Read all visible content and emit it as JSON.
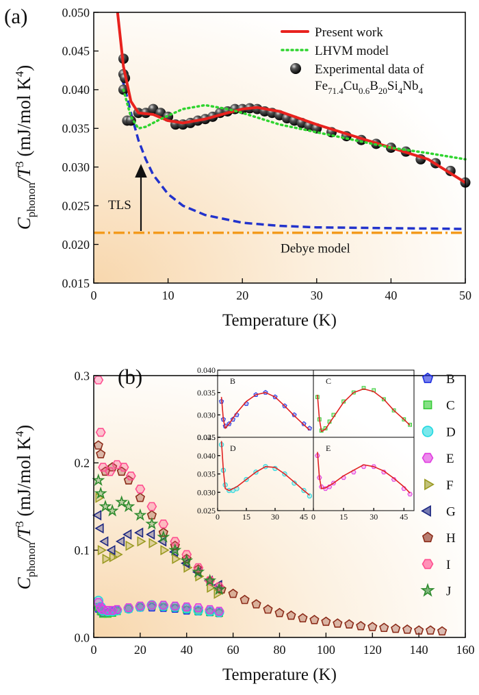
{
  "chart_data": [
    {
      "type": "line",
      "panel_label": "(a)",
      "xlabel": "Temperature (K)",
      "ylabel": [
        "C",
        "phonon",
        "/T",
        "3",
        " (mJ/mol K",
        "4",
        ")"
      ],
      "xlim": [
        0,
        50
      ],
      "xticks": [
        0,
        10,
        20,
        30,
        40,
        50
      ],
      "ylim": [
        0.015,
        0.05
      ],
      "yticks": [
        0.015,
        {
          "value": 0.02,
          "label": "0.020"
        },
        0.025,
        {
          "value": 0.03,
          "label": "0.030"
        },
        0.035,
        {
          "value": 0.04,
          "label": "0.040"
        },
        0.045,
        {
          "value": 0.05,
          "label": "0.050"
        }
      ],
      "series": [
        {
          "name": "Present work",
          "color": "#e8221e",
          "style": "solid",
          "x": [
            3.2,
            4,
            5,
            6,
            8,
            10,
            12,
            15,
            18,
            20,
            22,
            25,
            30,
            35,
            40,
            45,
            50
          ],
          "values": [
            0.05,
            0.043,
            0.0385,
            0.037,
            0.0368,
            0.036,
            0.0357,
            0.0362,
            0.037,
            0.0375,
            0.0377,
            0.0372,
            0.0355,
            0.034,
            0.0325,
            0.031,
            0.028
          ]
        },
        {
          "name": "LHVM model",
          "color": "#2fd42f",
          "style": "dotted",
          "x": [
            4,
            5,
            6,
            7,
            9,
            12,
            15,
            18,
            20,
            25,
            30,
            35,
            40,
            45,
            50
          ],
          "values": [
            0.04,
            0.0365,
            0.035,
            0.0352,
            0.0362,
            0.0375,
            0.038,
            0.0375,
            0.037,
            0.0355,
            0.0345,
            0.0335,
            0.0325,
            0.0318,
            0.031
          ]
        },
        {
          "name": "Experimental data of",
          "color": "#222222",
          "style": "ball",
          "x": [
            4,
            4,
            4,
            4.2,
            4.5,
            5,
            6,
            7,
            8,
            9,
            10,
            11,
            12,
            13,
            14,
            15,
            16,
            17,
            18,
            19,
            20,
            21,
            22,
            23,
            24,
            25,
            26,
            27,
            28,
            29,
            30,
            32,
            34,
            36,
            38,
            40,
            42,
            44,
            46,
            48,
            50
          ],
          "values": [
            0.044,
            0.042,
            0.04,
            0.0415,
            0.036,
            0.036,
            0.037,
            0.037,
            0.0375,
            0.037,
            0.0365,
            0.0355,
            0.0355,
            0.0357,
            0.036,
            0.0362,
            0.0365,
            0.037,
            0.0372,
            0.0375,
            0.0375,
            0.0376,
            0.0375,
            0.0372,
            0.037,
            0.0367,
            0.0363,
            0.036,
            0.0357,
            0.0353,
            0.035,
            0.0345,
            0.034,
            0.0335,
            0.033,
            0.0325,
            0.032,
            0.031,
            0.0305,
            0.0295,
            0.028
          ]
        }
      ],
      "legend_formula": [
        "Fe",
        "71.4",
        "Cu",
        "0.6",
        "B",
        "20",
        "Si",
        "4",
        "Nb",
        "4"
      ],
      "tls": {
        "label": "TLS",
        "color": "#2233cc",
        "x": [
          3.8,
          4.5,
          5,
          6,
          7,
          8,
          10,
          12,
          15,
          20,
          25,
          30,
          40,
          50
        ],
        "values": [
          0.0415,
          0.039,
          0.037,
          0.0335,
          0.031,
          0.029,
          0.0265,
          0.025,
          0.0238,
          0.0228,
          0.0224,
          0.0222,
          0.0221,
          0.022
        ]
      },
      "debye": {
        "label": "Debye model",
        "color": "#f39a1c",
        "values": [
          0.0215
        ]
      }
    },
    {
      "type": "scatter",
      "panel_label": "(b)",
      "xlabel": "Temperature (K)",
      "ylabel": [
        "C",
        "phonon",
        "/T",
        "3",
        " (mJ/mol K",
        "4",
        ")"
      ],
      "xlim": [
        0,
        160
      ],
      "xticks": [
        0,
        20,
        40,
        60,
        80,
        100,
        120,
        140,
        160
      ],
      "ylim": [
        0,
        0.3
      ],
      "yticks": [
        {
          "value": 0,
          "label": "0.0"
        },
        0.1,
        0.2,
        0.3
      ],
      "series": [
        {
          "name": "B",
          "color": "#1f2fe0",
          "marker": "pentagon",
          "x": [
            2,
            3,
            4,
            6,
            8,
            10,
            15,
            20,
            25,
            30,
            35,
            40,
            45,
            50,
            54
          ],
          "values": [
            0.033,
            0.03,
            0.028,
            0.028,
            0.029,
            0.031,
            0.033,
            0.0345,
            0.0345,
            0.034,
            0.033,
            0.031,
            0.03,
            0.029,
            0.028
          ]
        },
        {
          "name": "C",
          "color": "#35cc35",
          "marker": "square",
          "x": [
            2,
            3,
            4,
            6,
            8,
            10,
            15,
            20,
            25,
            30,
            35,
            40,
            45,
            50,
            54
          ],
          "values": [
            0.035,
            0.03,
            0.027,
            0.027,
            0.028,
            0.03,
            0.033,
            0.035,
            0.036,
            0.035,
            0.034,
            0.032,
            0.03,
            0.029,
            0.028
          ]
        },
        {
          "name": "D",
          "color": "#22d8e0",
          "marker": "circle",
          "x": [
            2,
            3,
            4,
            6,
            8,
            10,
            15,
            20,
            25,
            30,
            35,
            40,
            45,
            50,
            54
          ],
          "values": [
            0.042,
            0.035,
            0.031,
            0.03,
            0.03,
            0.031,
            0.033,
            0.035,
            0.037,
            0.036,
            0.035,
            0.033,
            0.031,
            0.03,
            0.029
          ]
        },
        {
          "name": "E",
          "color": "#e03ce0",
          "marker": "hexagon",
          "x": [
            2,
            3,
            4,
            6,
            8,
            10,
            15,
            20,
            25,
            30,
            35,
            40,
            45,
            50,
            54
          ],
          "values": [
            0.04,
            0.034,
            0.032,
            0.031,
            0.031,
            0.032,
            0.034,
            0.036,
            0.037,
            0.037,
            0.036,
            0.035,
            0.034,
            0.032,
            0.03
          ]
        },
        {
          "name": "F",
          "color": "#9a9a22",
          "marker": "triangle-right",
          "x": [
            2,
            3,
            5,
            8,
            10,
            15,
            20,
            25,
            30,
            35,
            40,
            45,
            50,
            53
          ],
          "values": [
            0.16,
            0.1,
            0.09,
            0.092,
            0.095,
            0.105,
            0.11,
            0.108,
            0.1,
            0.09,
            0.08,
            0.07,
            0.057,
            0.05
          ]
        },
        {
          "name": "G",
          "color": "#1a2580",
          "marker": "triangle-left",
          "x": [
            2,
            3,
            5,
            8,
            12,
            15,
            20,
            25,
            30,
            35,
            40,
            45,
            50,
            54
          ],
          "values": [
            0.14,
            0.125,
            0.11,
            0.1,
            0.11,
            0.118,
            0.12,
            0.118,
            0.11,
            0.098,
            0.085,
            0.075,
            0.065,
            0.06
          ]
        },
        {
          "name": "H",
          "color": "#8b2a18",
          "marker": "pentagon",
          "x": [
            2,
            3,
            5,
            8,
            12,
            15,
            20,
            25,
            30,
            35,
            40,
            45,
            50,
            55,
            60,
            65,
            70,
            75,
            80,
            85,
            90,
            95,
            100,
            105,
            110,
            115,
            120,
            125,
            130,
            135,
            140,
            145,
            150
          ],
          "values": [
            0.22,
            0.21,
            0.19,
            0.195,
            0.19,
            0.18,
            0.16,
            0.14,
            0.12,
            0.105,
            0.09,
            0.078,
            0.065,
            0.055,
            0.05,
            0.043,
            0.038,
            0.032,
            0.028,
            0.025,
            0.022,
            0.02,
            0.018,
            0.016,
            0.015,
            0.013,
            0.012,
            0.011,
            0.01,
            0.009,
            0.008,
            0.008,
            0.007
          ]
        },
        {
          "name": "I",
          "color": "#ff4d8f",
          "marker": "hexagon",
          "x": [
            2,
            3,
            4,
            7,
            10,
            13,
            16,
            20,
            25,
            30,
            35,
            40,
            45,
            50,
            54
          ],
          "values": [
            0.295,
            0.235,
            0.195,
            0.19,
            0.198,
            0.195,
            0.185,
            0.17,
            0.15,
            0.13,
            0.11,
            0.095,
            0.08,
            0.065,
            0.058
          ]
        },
        {
          "name": "J",
          "color": "#2e8b2e",
          "marker": "star",
          "x": [
            2,
            3,
            5,
            8,
            12,
            15,
            20,
            25,
            30,
            35,
            40,
            45,
            50,
            54
          ],
          "values": [
            0.18,
            0.165,
            0.15,
            0.145,
            0.155,
            0.15,
            0.14,
            0.13,
            0.115,
            0.1,
            0.088,
            0.075,
            0.065,
            0.055
          ]
        }
      ]
    },
    {
      "type": "scatter",
      "label": "B",
      "xlim": [
        0,
        50
      ],
      "ylim": [
        0.025,
        0.04
      ],
      "yticks": [
        0.025,
        {
          "value": 0.03,
          "label": "0.030"
        },
        0.035,
        {
          "value": 0.04,
          "label": "0.040"
        }
      ],
      "series": [
        {
          "color": "#1f2fe0",
          "marker": "pentagon",
          "x": [
            2,
            3,
            4,
            6,
            8,
            10,
            15,
            20,
            25,
            30,
            35,
            40,
            45,
            48
          ],
          "values": [
            0.033,
            0.029,
            0.0275,
            0.028,
            0.029,
            0.03,
            0.0325,
            0.0345,
            0.035,
            0.034,
            0.032,
            0.03,
            0.028,
            0.027
          ]
        },
        {
          "color": "#e02020",
          "style": "solid",
          "x": [
            2,
            3,
            4,
            6,
            10,
            15,
            20,
            25,
            30,
            35,
            40,
            45,
            48
          ],
          "values": [
            0.034,
            0.029,
            0.027,
            0.028,
            0.0305,
            0.033,
            0.0345,
            0.035,
            0.034,
            0.032,
            0.0298,
            0.0278,
            0.0266
          ]
        }
      ]
    },
    {
      "type": "scatter",
      "label": "C",
      "xlim": [
        0,
        50
      ],
      "ylim": [
        0.025,
        0.04
      ],
      "series": [
        {
          "color": "#35cc35",
          "marker": "square",
          "x": [
            2,
            3,
            4,
            6,
            8,
            10,
            15,
            20,
            25,
            30,
            35,
            40,
            45,
            48
          ],
          "values": [
            0.034,
            0.029,
            0.0265,
            0.027,
            0.0285,
            0.03,
            0.033,
            0.035,
            0.036,
            0.0355,
            0.0335,
            0.031,
            0.029,
            0.0278
          ]
        },
        {
          "color": "#e02020",
          "style": "solid",
          "x": [
            2,
            3,
            4,
            6,
            10,
            15,
            20,
            25,
            30,
            35,
            40,
            45,
            48
          ],
          "values": [
            0.0345,
            0.029,
            0.0263,
            0.0268,
            0.0295,
            0.0328,
            0.035,
            0.0358,
            0.0352,
            0.0335,
            0.031,
            0.029,
            0.0277
          ]
        }
      ]
    },
    {
      "type": "scatter",
      "label": "D",
      "xlim": [
        0,
        50
      ],
      "ylim": [
        0.025,
        0.045
      ],
      "xticks": [
        0,
        15,
        30,
        45
      ],
      "yticks": [
        0.025,
        {
          "value": 0.03,
          "label": "0.030"
        },
        0.035,
        {
          "value": 0.04,
          "label": "0.040"
        },
        0.045
      ],
      "series": [
        {
          "color": "#22d8e0",
          "marker": "circle",
          "x": [
            2,
            3,
            4,
            6,
            8,
            10,
            15,
            20,
            25,
            30,
            35,
            40,
            45,
            48
          ],
          "values": [
            0.043,
            0.036,
            0.032,
            0.0305,
            0.0305,
            0.031,
            0.0335,
            0.0355,
            0.037,
            0.0365,
            0.035,
            0.0325,
            0.0305,
            0.029
          ]
        },
        {
          "color": "#e02020",
          "style": "solid",
          "x": [
            2,
            3,
            4,
            6,
            10,
            15,
            20,
            25,
            30,
            35,
            40,
            45,
            48
          ],
          "values": [
            0.044,
            0.036,
            0.031,
            0.0305,
            0.0315,
            0.0335,
            0.0355,
            0.037,
            0.0368,
            0.035,
            0.0328,
            0.0305,
            0.0292
          ]
        }
      ]
    },
    {
      "type": "scatter",
      "label": "E",
      "xlim": [
        0,
        50
      ],
      "ylim": [
        0.025,
        0.045
      ],
      "xticks": [
        0,
        15,
        30,
        45
      ],
      "series": [
        {
          "color": "#e03ce0",
          "marker": "hexagon",
          "x": [
            2,
            3,
            4,
            6,
            8,
            10,
            15,
            20,
            25,
            30,
            35,
            40,
            45,
            48
          ],
          "values": [
            0.04,
            0.034,
            0.0315,
            0.031,
            0.0315,
            0.0325,
            0.034,
            0.0355,
            0.037,
            0.037,
            0.0355,
            0.0335,
            0.031,
            0.0295
          ]
        },
        {
          "color": "#e02020",
          "style": "solid",
          "x": [
            2,
            3,
            4,
            6,
            10,
            15,
            20,
            25,
            30,
            35,
            40,
            45,
            48
          ],
          "values": [
            0.041,
            0.034,
            0.031,
            0.0312,
            0.0325,
            0.0345,
            0.036,
            0.0375,
            0.037,
            0.0358,
            0.0338,
            0.0315,
            0.0298
          ]
        }
      ]
    }
  ]
}
